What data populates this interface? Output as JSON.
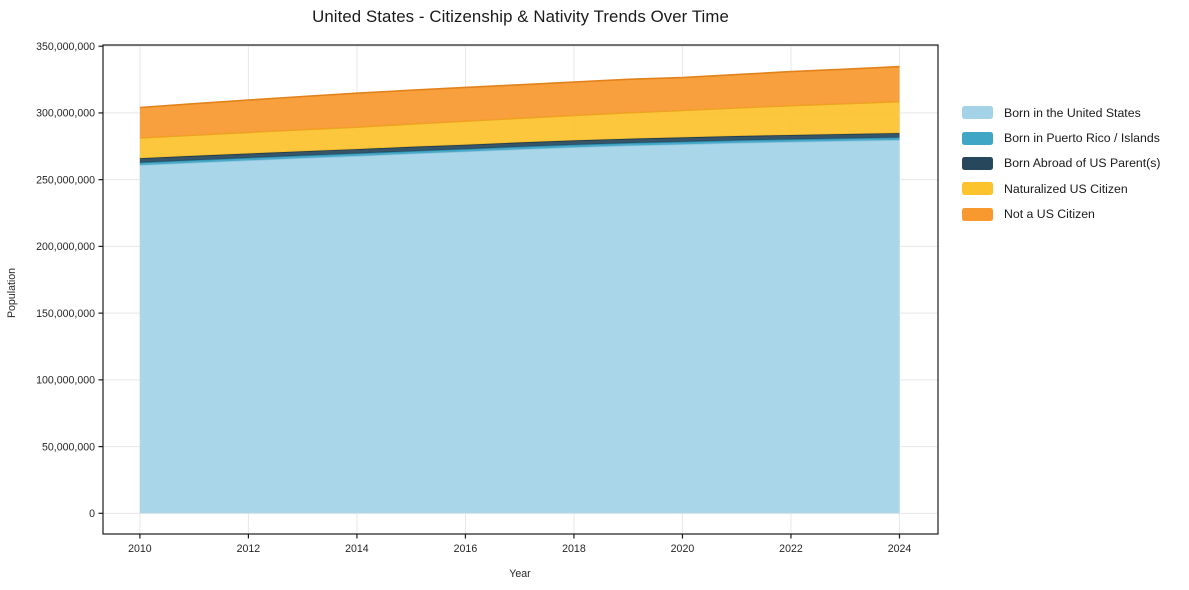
{
  "chart_data": {
    "type": "area",
    "stacked": true,
    "title": "United States - Citizenship & Nativity Trends Over Time",
    "xlabel": "Year",
    "ylabel": "Population",
    "x": [
      2010,
      2011,
      2012,
      2013,
      2014,
      2015,
      2016,
      2017,
      2018,
      2019,
      2020,
      2021,
      2022,
      2023,
      2024
    ],
    "x_ticks": [
      2010,
      2012,
      2014,
      2016,
      2018,
      2020,
      2022,
      2024
    ],
    "y_ticks": [
      0,
      50000000,
      100000000,
      150000000,
      200000000,
      250000000,
      300000000,
      350000000
    ],
    "xlim": [
      2009.32,
      2024.71
    ],
    "ylim": [
      -15500000,
      350900000
    ],
    "grid": true,
    "legend_position": "right-outside",
    "series": [
      {
        "name": "Born in the United States",
        "color": "#a4d3e8",
        "edge": "#8cc3dd",
        "values": [
          261000000,
          262800000,
          264500000,
          266200000,
          267800000,
          269500000,
          271100000,
          272800000,
          274300000,
          275600000,
          276600000,
          277600000,
          278400000,
          279100000,
          279800000
        ]
      },
      {
        "name": "Born in Puerto Rico / Islands",
        "color": "#40a6c6",
        "edge": "#2f8fb0",
        "values": [
          1800000,
          1800000,
          1800000,
          1800000,
          1800000,
          1800000,
          1800000,
          1800000,
          1800000,
          1800000,
          1800000,
          1800000,
          1800000,
          1800000,
          1800000
        ]
      },
      {
        "name": "Born Abroad of US Parent(s)",
        "color": "#27485c",
        "edge": "#1d3a4c",
        "values": [
          3300000,
          3300000,
          3300000,
          3300000,
          3300000,
          3300000,
          3300000,
          3300000,
          3300000,
          3300000,
          3300000,
          3300000,
          3300000,
          3300000,
          3300000
        ]
      },
      {
        "name": "Naturalized US Citizen",
        "color": "#fcc32d",
        "edge": "#e8a81c",
        "values": [
          15100000,
          15400000,
          15800000,
          16100000,
          16400000,
          17000000,
          17600000,
          18100000,
          18700000,
          19400000,
          20100000,
          21000000,
          21900000,
          22700000,
          23500000
        ]
      },
      {
        "name": "Not a US Citizen",
        "color": "#f8992f",
        "edge": "#e2821a",
        "values": [
          22900000,
          23600000,
          24200000,
          24900000,
          25500000,
          25400000,
          25300000,
          25100000,
          25000000,
          25100000,
          24700000,
          25000000,
          25600000,
          25900000,
          26300000
        ]
      }
    ],
    "colors": {
      "grid": "#e7e7e7",
      "spine": "#1a1a1a",
      "text": "#262626",
      "background": "#ffffff"
    }
  }
}
